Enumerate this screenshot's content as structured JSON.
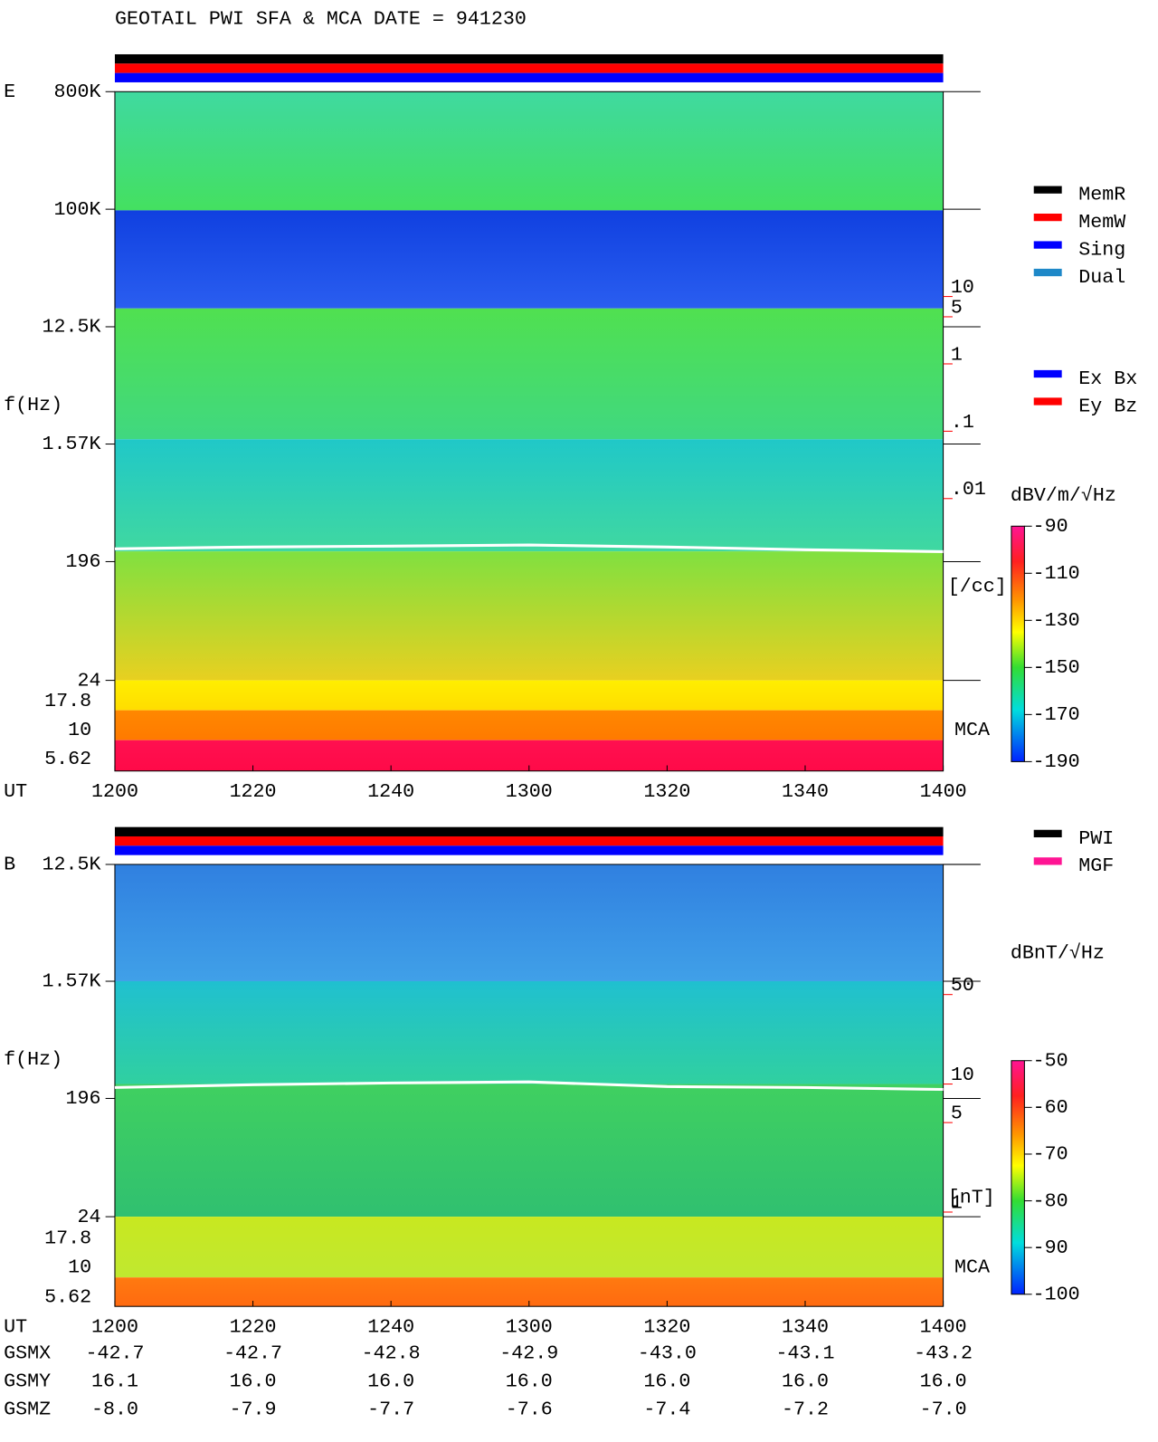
{
  "title": "GEOTAIL  PWI SFA & MCA   DATE = 941230",
  "chart_data": [
    {
      "type": "spectrogram",
      "panel_label": "E",
      "y_label": "f(Hz)",
      "x_label": "UT",
      "categories": [
        "1200",
        "1220",
        "1240",
        "1300",
        "1320",
        "1340",
        "1400"
      ],
      "yscale": "log",
      "ylim": [
        24,
        800000
      ],
      "yticks": [
        {
          "value": 800000,
          "label": "800K"
        },
        {
          "value": 100000,
          "label": "100K"
        },
        {
          "value": 12500,
          "label": "12.5K"
        },
        {
          "value": 1570,
          "label": "1.57K"
        },
        196,
        24
      ],
      "mca_channels": [
        "17.8",
        "10",
        "5.62"
      ],
      "mca_label": "MCA",
      "y2scale": "log",
      "y2lim": [
        2e-05,
        11000
      ],
      "y2ticks": [
        10,
        5,
        1,
        {
          "value": 0.1,
          "label": ".1"
        },
        {
          "value": 0.01,
          "label": ".01"
        }
      ],
      "y2_label": "[/cc]",
      "y2_color": "#ff0000",
      "series": [
        {
          "color": "#ffffff",
          "values": [
            246,
            254,
            258,
            263,
            254,
            242,
            234
          ]
        }
      ],
      "legends": [
        [
          {
            "name": "MemR",
            "color": "#000000"
          },
          {
            "name": "MemW",
            "color": "#ff0000"
          },
          {
            "name": "Sing",
            "color": "#0000ff"
          },
          {
            "name": "Dual",
            "color": "#1e88c8"
          }
        ],
        [
          {
            "name": "Ex Bx",
            "color": "#0000ff"
          },
          {
            "name": "Ey Bz",
            "color": "#ff0000"
          }
        ]
      ],
      "colorbar": {
        "label": "dBV/m/√Hz",
        "clim": [
          -190,
          -90
        ],
        "ticks": [
          -90,
          -110,
          -130,
          -150,
          -170,
          -190
        ]
      }
    },
    {
      "type": "spectrogram",
      "panel_label": "B",
      "y_label": "f(Hz)",
      "x_label": "UT",
      "categories": [
        "1200",
        "1220",
        "1240",
        "1300",
        "1320",
        "1340",
        "1400"
      ],
      "yscale": "log",
      "ylim": [
        24,
        12500
      ],
      "yticks": [
        {
          "value": 12500,
          "label": "12.5K"
        },
        {
          "value": 1570,
          "label": "1.57K"
        },
        196,
        24
      ],
      "mca_channels": [
        "17.8",
        "10",
        "5.62"
      ],
      "mca_label": "MCA",
      "y2scale": "log",
      "y2lim": [
        0.92,
        519
      ],
      "y2ticks": [
        50,
        10,
        5,
        1
      ],
      "y2_label": "[nT]",
      "y2_color": "#ff0000",
      "series": [
        {
          "color": "#ffffff",
          "values": [
            238,
            250,
            258,
            263,
            242,
            238,
            230
          ]
        }
      ],
      "legends": [
        [
          {
            "name": "PWI",
            "color": "#000000"
          },
          {
            "name": "MGF",
            "color": "#ff1493"
          }
        ]
      ],
      "colorbar": {
        "label": "dBnT/√Hz",
        "clim": [
          -100,
          -50
        ],
        "ticks": [
          -50,
          -60,
          -70,
          -80,
          -90,
          -100
        ]
      }
    }
  ],
  "orbit": {
    "rows": [
      {
        "name": "GSMX",
        "values": [
          "-42.7",
          "-42.7",
          "-42.8",
          "-42.9",
          "-43.0",
          "-43.1",
          "-43.2"
        ]
      },
      {
        "name": "GSMY",
        "values": [
          "16.1",
          "16.0",
          "16.0",
          "16.0",
          "16.0",
          "16.0",
          "16.0"
        ]
      },
      {
        "name": "GSMZ",
        "values": [
          "-8.0",
          "-7.9",
          "-7.7",
          "-7.6",
          "-7.4",
          "-7.2",
          "-7.0"
        ]
      }
    ]
  }
}
